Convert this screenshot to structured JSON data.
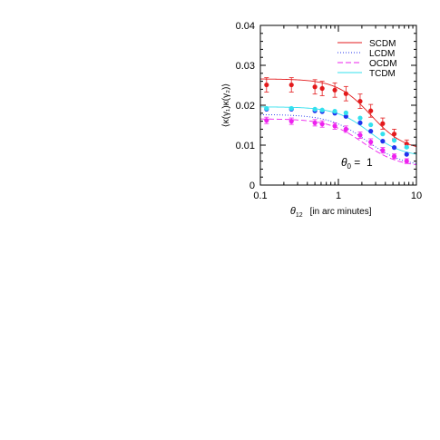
{
  "chart_data": {
    "type": "scatter",
    "title": "",
    "xlabel_symbol": "θ",
    "xlabel_sub": "12",
    "xlabel_rest": "[in arc minutes]",
    "ylabel": "⟨κ(γ₁)κ(γ₂)⟩",
    "x_scale": "log",
    "xlim": [
      0.1,
      10
    ],
    "ylim": [
      0,
      0.04
    ],
    "x_ticks": [
      0.1,
      1,
      10
    ],
    "x_tick_labels": [
      "0.1",
      "1",
      "10"
    ],
    "y_ticks": [
      0,
      0.01,
      0.02,
      0.03,
      0.04
    ],
    "y_tick_labels": [
      "0",
      "0.01",
      "0.02",
      "0.03",
      "0.04"
    ],
    "grid": false,
    "legend_position": "top-right",
    "annotation": {
      "symbol": "θ",
      "sub": "0",
      "rest": " =  1"
    },
    "x_points": [
      0.12,
      0.25,
      0.5,
      0.62,
      0.9,
      1.25,
      1.9,
      2.6,
      3.7,
      5.2,
      7.5
    ],
    "series": [
      {
        "name": "SCDM",
        "color": "#e31a1c",
        "line_style": "solid",
        "point_values": [
          0.0251,
          0.0251,
          0.0246,
          0.0242,
          0.0238,
          0.0229,
          0.021,
          0.0186,
          0.0154,
          0.0128,
          0.0103
        ],
        "errors": [
          0.0018,
          0.0018,
          0.0018,
          0.0018,
          0.0018,
          0.0018,
          0.0018,
          0.0016,
          0.0014,
          0.0012,
          0.001
        ],
        "curve": {
          "amplitude": 0.0266,
          "floor": 0.0085,
          "scale": 2.6,
          "power": 2.0
        }
      },
      {
        "name": "LCDM",
        "color": "#2233ee",
        "line_style": "dotted",
        "point_values": [
          0.019,
          0.019,
          0.0186,
          0.0184,
          0.018,
          0.0172,
          0.0156,
          0.0135,
          0.011,
          0.0094,
          0.0077
        ],
        "errors": [],
        "curve": {
          "amplitude": 0.0177,
          "floor": 0.0045,
          "scale": 2.3,
          "power": 1.8
        }
      },
      {
        "name": "OCDM",
        "color": "#ee22ee",
        "line_style": "dashed",
        "point_values": [
          0.0162,
          0.016,
          0.0156,
          0.0153,
          0.0148,
          0.014,
          0.0125,
          0.0108,
          0.0087,
          0.0072,
          0.006
        ],
        "errors": [
          0.0008,
          0.0008,
          0.0008,
          0.0008,
          0.0008,
          0.0008,
          0.0008,
          0.0008,
          0.0007,
          0.0006,
          0.0006
        ],
        "curve": {
          "amplitude": 0.0166,
          "floor": 0.0045,
          "scale": 2.1,
          "power": 1.9
        }
      },
      {
        "name": "TCDM",
        "color": "#33e0ee",
        "line_style": "solid",
        "point_values": [
          0.0192,
          0.0192,
          0.019,
          0.0188,
          0.0185,
          0.0181,
          0.0168,
          0.0151,
          0.0128,
          0.0112,
          0.0095
        ],
        "errors": [],
        "curve": {
          "amplitude": 0.0196,
          "floor": 0.007,
          "scale": 2.5,
          "power": 2.0
        }
      }
    ]
  }
}
